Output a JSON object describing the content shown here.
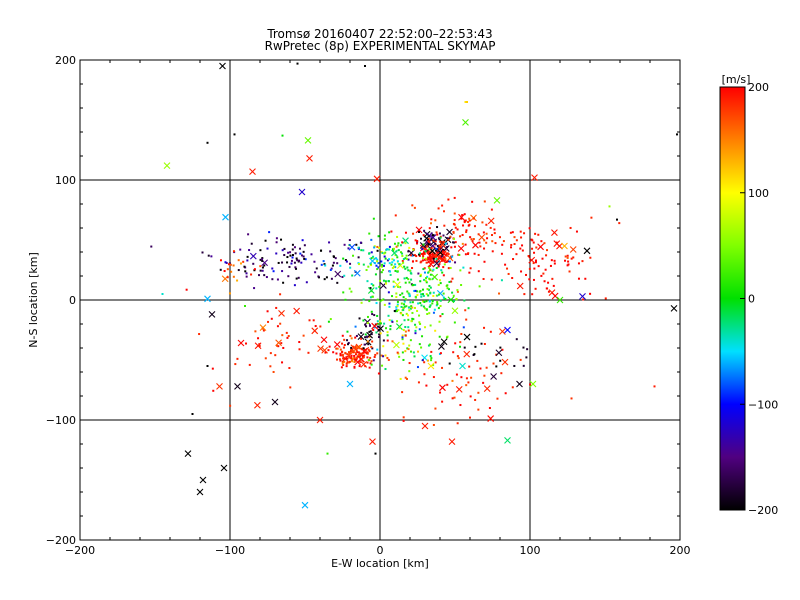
{
  "title": "Tromsø 20160407 22:52:00–22:53:43",
  "subtitle": "RwPretec (8p) EXPERIMENTAL SKYMAP",
  "chart_data": {
    "type": "scatter",
    "title": "Tromsø 20160407 22:52:00–22:53:43",
    "subtitle": "RwPretec (8p) EXPERIMENTAL SKYMAP",
    "xlabel": "E-W location [km]",
    "ylabel": "N-S location [km]",
    "xlim": [
      -200,
      200
    ],
    "ylim": [
      -200,
      200
    ],
    "xticks": [
      "−200",
      "−100",
      "0",
      "100",
      "200"
    ],
    "yticks": [
      "−200",
      "−100",
      "0",
      "100",
      "200"
    ],
    "xtick_values": [
      -200,
      -100,
      0,
      100,
      200
    ],
    "ytick_values": [
      -200,
      -100,
      0,
      100,
      200
    ],
    "grid": true,
    "grid_values": [
      -100,
      0,
      100
    ],
    "colorbar": {
      "label": "[m/s]",
      "range": [
        -200,
        200
      ],
      "ticks": [
        "200",
        "100",
        "0",
        "−100",
        "−200"
      ],
      "tick_values": [
        200,
        100,
        0,
        -100,
        -200
      ]
    },
    "markers": [
      "dot",
      "x"
    ],
    "clusters": [
      {
        "name": "west-band",
        "x": -55,
        "y": 33,
        "sx": 28,
        "sy": 10,
        "n": 140,
        "v": -170,
        "vs": 40,
        "xr": 0.07
      },
      {
        "name": "west-red",
        "x": -95,
        "y": 24,
        "sx": 10,
        "sy": 10,
        "n": 20,
        "v": 175,
        "vs": 20,
        "xr": 0.1
      },
      {
        "name": "north-center",
        "x": 0,
        "y": 35,
        "sx": 12,
        "sy": 8,
        "n": 90,
        "v": -20,
        "vs": 60,
        "xr": 0.05
      },
      {
        "name": "northeast-hot",
        "x": 33,
        "y": 37,
        "sx": 7,
        "sy": 5,
        "n": 110,
        "v": 195,
        "vs": 8,
        "xr": 0.12
      },
      {
        "name": "northeast-dark",
        "x": 38,
        "y": 48,
        "sx": 9,
        "sy": 6,
        "n": 60,
        "v": -180,
        "vs": 20,
        "xr": 0.18
      },
      {
        "name": "northeast-red",
        "x": 55,
        "y": 52,
        "sx": 20,
        "sy": 14,
        "n": 120,
        "v": 190,
        "vs": 15,
        "xr": 0.07
      },
      {
        "name": "east-red",
        "x": 105,
        "y": 30,
        "sx": 22,
        "sy": 18,
        "n": 100,
        "v": 195,
        "vs": 10,
        "xr": 0.07
      },
      {
        "name": "center-mix",
        "x": 20,
        "y": 5,
        "sx": 18,
        "sy": 20,
        "n": 300,
        "v": 5,
        "vs": 45,
        "xr": 0.02
      },
      {
        "name": "south-hot",
        "x": -16,
        "y": -45,
        "sx": 8,
        "sy": 6,
        "n": 130,
        "v": 185,
        "vs": 20,
        "xr": 0.12
      },
      {
        "name": "south-dark",
        "x": -10,
        "y": -30,
        "sx": 8,
        "sy": 12,
        "n": 35,
        "v": -180,
        "vs": 20,
        "xr": 0.15
      },
      {
        "name": "south-mid",
        "x": 15,
        "y": -40,
        "sx": 15,
        "sy": 12,
        "n": 60,
        "v": 80,
        "vs": 90,
        "xr": 0.06
      },
      {
        "name": "south-west-red",
        "x": -65,
        "y": -40,
        "sx": 22,
        "sy": 18,
        "n": 60,
        "v": 190,
        "vs": 10,
        "xr": 0.08
      },
      {
        "name": "southeast-red",
        "x": 55,
        "y": -60,
        "sx": 22,
        "sy": 22,
        "n": 70,
        "v": 185,
        "vs": 15,
        "xr": 0.1
      },
      {
        "name": "southeast-dark",
        "x": 70,
        "y": -45,
        "sx": 15,
        "sy": 10,
        "n": 20,
        "v": -190,
        "vs": 10,
        "xr": 0.15
      }
    ],
    "scattered": [
      {
        "x": -142,
        "y": 112,
        "v": 60,
        "m": "x"
      },
      {
        "x": -105,
        "y": 195,
        "v": -200,
        "m": "x"
      },
      {
        "x": -85,
        "y": 107,
        "v": 190,
        "m": "x"
      },
      {
        "x": -48,
        "y": 133,
        "v": 40,
        "m": "x"
      },
      {
        "x": -47,
        "y": 118,
        "v": 190,
        "m": "x"
      },
      {
        "x": -52,
        "y": 90,
        "v": -120,
        "m": "x"
      },
      {
        "x": -103,
        "y": 69,
        "v": -60,
        "m": "x"
      },
      {
        "x": 57,
        "y": 148,
        "v": 30,
        "m": "x"
      },
      {
        "x": 103,
        "y": 102,
        "v": 190,
        "m": "x"
      },
      {
        "x": 78,
        "y": 83,
        "v": 40,
        "m": "x"
      },
      {
        "x": -2,
        "y": 101,
        "v": 190,
        "m": "x"
      },
      {
        "x": 57,
        "y": 165,
        "v": 110,
        "m": "dot"
      },
      {
        "x": -65,
        "y": 137,
        "v": 0,
        "m": "dot"
      },
      {
        "x": -115,
        "y": 1,
        "v": -60,
        "m": "x"
      },
      {
        "x": -145,
        "y": 5,
        "v": -40,
        "m": "dot"
      },
      {
        "x": -112,
        "y": -12,
        "v": -190,
        "m": "x"
      },
      {
        "x": -107,
        "y": -72,
        "v": 180,
        "m": "x"
      },
      {
        "x": -95,
        "y": -72,
        "v": -190,
        "m": "x"
      },
      {
        "x": -128,
        "y": -128,
        "v": -200,
        "m": "x"
      },
      {
        "x": -118,
        "y": -150,
        "v": -200,
        "m": "x"
      },
      {
        "x": -120,
        "y": -160,
        "v": -200,
        "m": "x"
      },
      {
        "x": -104,
        "y": -140,
        "v": -200,
        "m": "x"
      },
      {
        "x": -115,
        "y": -55,
        "v": -200,
        "m": "dot"
      },
      {
        "x": -125,
        "y": -95,
        "v": -200,
        "m": "dot"
      },
      {
        "x": -50,
        "y": -171,
        "v": -60,
        "m": "x"
      },
      {
        "x": -40,
        "y": -100,
        "v": 190,
        "m": "x"
      },
      {
        "x": -35,
        "y": -128,
        "v": 20,
        "m": "dot"
      },
      {
        "x": -5,
        "y": -118,
        "v": 190,
        "m": "x"
      },
      {
        "x": 48,
        "y": -118,
        "v": 190,
        "m": "x"
      },
      {
        "x": 85,
        "y": -117,
        "v": -20,
        "m": "x"
      },
      {
        "x": 102,
        "y": -70,
        "v": 50,
        "m": "x"
      },
      {
        "x": 93,
        "y": -70,
        "v": -190,
        "m": "x"
      },
      {
        "x": 135,
        "y": 3,
        "v": -120,
        "m": "x"
      },
      {
        "x": 138,
        "y": 41,
        "v": -200,
        "m": "x"
      },
      {
        "x": 123,
        "y": 45,
        "v": 130,
        "m": "x"
      },
      {
        "x": 196,
        "y": -7,
        "v": -200,
        "m": "x"
      },
      {
        "x": 183,
        "y": -72,
        "v": 190,
        "m": "dot"
      },
      {
        "x": 158,
        "y": 67,
        "v": -200,
        "m": "dot"
      },
      {
        "x": 153,
        "y": 78,
        "v": 60,
        "m": "dot"
      },
      {
        "x": 198,
        "y": 138,
        "v": -200,
        "m": "dot"
      },
      {
        "x": 58,
        "y": 165,
        "v": 120,
        "m": "dot"
      },
      {
        "x": -55,
        "y": 197,
        "v": -200,
        "m": "dot"
      },
      {
        "x": -10,
        "y": 195,
        "v": -200,
        "m": "dot"
      },
      {
        "x": -97,
        "y": 138,
        "v": -200,
        "m": "dot"
      },
      {
        "x": -115,
        "y": 131,
        "v": -200,
        "m": "dot"
      },
      {
        "x": -3,
        "y": -128,
        "v": -200,
        "m": "dot"
      },
      {
        "x": 30,
        "y": -105,
        "v": 190,
        "m": "x"
      },
      {
        "x": 60,
        "y": -98,
        "v": 190,
        "m": "dot"
      },
      {
        "x": -70,
        "y": -85,
        "v": -190,
        "m": "x"
      },
      {
        "x": 55,
        "y": -55,
        "v": -40,
        "m": "x"
      },
      {
        "x": 34,
        "y": -55,
        "v": 110,
        "m": "x"
      },
      {
        "x": -20,
        "y": -70,
        "v": -60,
        "m": "x"
      },
      {
        "x": -90,
        "y": -5,
        "v": 20,
        "m": "dot"
      },
      {
        "x": 120,
        "y": 0,
        "v": 20,
        "m": "x"
      },
      {
        "x": 85,
        "y": -25,
        "v": -100,
        "m": "x"
      },
      {
        "x": -78,
        "y": -23,
        "v": 150,
        "m": "x"
      }
    ]
  }
}
